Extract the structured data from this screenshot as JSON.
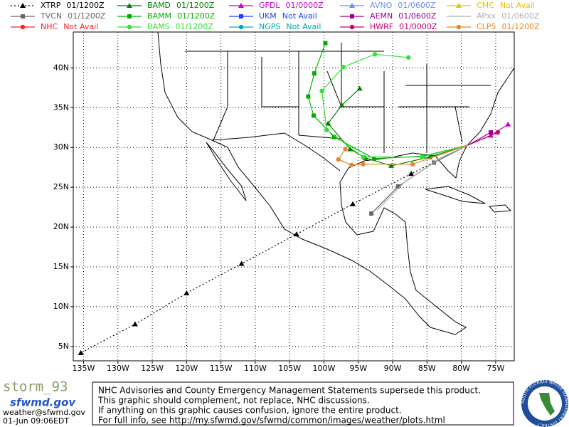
{
  "chart_data": {
    "type": "map",
    "xlim": [
      -136.5,
      -72.3
    ],
    "ylim": [
      3.2,
      44.5
    ],
    "xticks": [
      {
        "value": -135,
        "label": "135W"
      },
      {
        "value": -130,
        "label": "130W"
      },
      {
        "value": -125,
        "label": "125W"
      },
      {
        "value": -120,
        "label": "120W"
      },
      {
        "value": -115,
        "label": "115W"
      },
      {
        "value": -110,
        "label": "110W"
      },
      {
        "value": -105,
        "label": "105W"
      },
      {
        "value": -100,
        "label": "100W"
      },
      {
        "value": -95,
        "label": "95W"
      },
      {
        "value": -90,
        "label": "90W"
      },
      {
        "value": -85,
        "label": "85W"
      },
      {
        "value": -80,
        "label": "80W"
      },
      {
        "value": -75,
        "label": "75W"
      }
    ],
    "yticks": [
      {
        "value": 5,
        "label": "5N"
      },
      {
        "value": 10,
        "label": "10N"
      },
      {
        "value": 15,
        "label": "15N"
      },
      {
        "value": 20,
        "label": "20N"
      },
      {
        "value": 25,
        "label": "25N"
      },
      {
        "value": 30,
        "label": "30N"
      },
      {
        "value": 35,
        "label": "35N"
      },
      {
        "value": 40,
        "label": "40N"
      }
    ],
    "grid": true,
    "series": [
      {
        "name": "XTRP",
        "status": "01/1200Z",
        "color": "#000000",
        "marker": "triangle",
        "dash": "dotted",
        "x": [
          -79.0,
          -87.3,
          -95.8,
          -104.0,
          -112.0,
          -120.0,
          -127.5,
          -135.4
        ],
        "values": [
          30.3,
          26.7,
          22.9,
          19.1,
          15.4,
          11.7,
          7.8,
          4.2
        ]
      },
      {
        "name": "TVCN",
        "status": "01/1200Z",
        "color": "#666666",
        "marker": "square",
        "x": [
          -79.0,
          -84.0,
          -89.2,
          -93.1
        ],
        "values": [
          30.3,
          28.1,
          25.1,
          21.7
        ]
      },
      {
        "name": "NHC",
        "status": "Not Avail",
        "color": "#ff2020",
        "marker": "circle"
      },
      {
        "name": "BAMD",
        "status": "01/1200Z",
        "color": "#008000",
        "marker": "triangle",
        "x": [
          -79.0,
          -84.6,
          -90.2,
          -94.0,
          -96.2,
          -99.4,
          -97.4,
          -94.8
        ],
        "values": [
          30.3,
          28.8,
          27.7,
          28.7,
          29.8,
          33.0,
          35.3,
          37.4
        ]
      },
      {
        "name": "BAMM",
        "status": "01/1200Z",
        "color": "#00b000",
        "marker": "square",
        "x": [
          -79.0,
          -85.6,
          -92.7,
          -98.5,
          -101.5,
          -102.3,
          -101.4,
          -99.8
        ],
        "values": [
          30.3,
          28.9,
          28.6,
          31.3,
          34.0,
          36.4,
          39.3,
          43.1
        ]
      },
      {
        "name": "BAMS",
        "status": "01/1200Z",
        "color": "#33e033",
        "marker": "circle",
        "x": [
          -79.0,
          -85.7,
          -94.3,
          -99.6,
          -100.3,
          -97.2,
          -92.6,
          -87.7
        ],
        "values": [
          30.3,
          28.8,
          28.8,
          32.2,
          37.1,
          40.1,
          41.7,
          41.3
        ]
      },
      {
        "name": "GFDL",
        "status": "01/0000Z",
        "color": "#cc00cc",
        "marker": "triangle",
        "x": [
          -79.0,
          -75.7,
          -73.2
        ],
        "values": [
          30.3,
          31.5,
          32.9
        ]
      },
      {
        "name": "UKM",
        "status": "Not Avail",
        "color": "#1f3fff",
        "marker": "square"
      },
      {
        "name": "NGPS",
        "status": "Not Avail",
        "color": "#00aaaa",
        "marker": "circle"
      },
      {
        "name": "AVNO",
        "status": "01/0600Z",
        "color": "#6b8fe6",
        "marker": "triangle"
      },
      {
        "name": "AEMN",
        "status": "01/0600Z",
        "color": "#990099",
        "marker": "square",
        "x": [
          -79.0,
          -75.7
        ],
        "values": [
          30.3,
          31.9
        ]
      },
      {
        "name": "HWRF",
        "status": "01/0000Z",
        "color": "#cc0066",
        "marker": "circle",
        "x": [
          -79.0,
          -74.7
        ],
        "values": [
          30.3,
          31.9
        ]
      },
      {
        "name": "CMC",
        "status": "Not Avail",
        "color": "#e6c300",
        "marker": "triangle"
      },
      {
        "name": "APxx",
        "status": "01/0600Z",
        "color": "#b0b0b0",
        "marker": "none",
        "x": [
          -79.0,
          -83.0,
          -88.2,
          -92.3
        ],
        "values": [
          30.3,
          28.7,
          25.7,
          22.1
        ]
      },
      {
        "name": "CLP5",
        "status": "01/1200Z",
        "color": "#e8862a",
        "marker": "circle",
        "x": [
          -79.0,
          -87.1,
          -94.3,
          -96.0,
          -97.9,
          -96.9
        ],
        "values": [
          30.3,
          27.9,
          27.9,
          27.8,
          28.5,
          29.8
        ]
      }
    ]
  },
  "footer": {
    "brand": "storm_93",
    "site": "sfwmd.gov",
    "email": "weather@sfwmd.gov",
    "timestamp": "01-Jun 09:06EDT",
    "notice": [
      "NHC Advisories and County Emergency Management Statements supersede this product.",
      "This graphic should complement, not replace, NHC discussions.",
      "If anything on this graphic causes confusion, ignore the entire product.",
      "For full info, see  http://my.sfwmd.gov/sfwmd/common/images/weather/plots.html"
    ],
    "logo": "SOUTH FLORIDA WATER MANAGEMENT DISTRICT"
  }
}
